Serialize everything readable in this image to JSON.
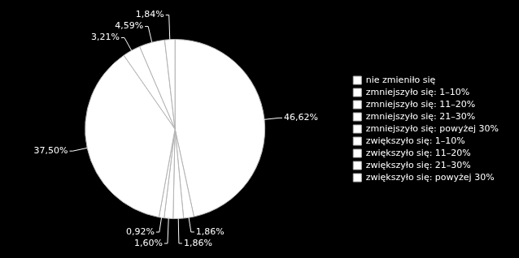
{
  "chart_data": {
    "type": "pie",
    "categories": [
      "nie zmieniło się",
      "zmniejszyło się: 1–10%",
      "zmniejszyło się: 11–20%",
      "zmniejszyło się: 21–30%",
      "zmniejszyło się: powyżej 30%",
      "zwiększyło się: 1–10%",
      "zwiększyło się: 11–20%",
      "zwiększyło się: 21–30%",
      "zwiększyło się: powyżej 30%"
    ],
    "values": [
      46.62,
      1.86,
      1.86,
      1.6,
      0.92,
      37.5,
      3.21,
      4.59,
      1.84
    ],
    "value_labels": [
      "46,62%",
      "1,86%",
      "1,86%",
      "1,60%",
      "0,92%",
      "37,50%",
      "3,21%",
      "4,59%",
      "1,84%"
    ],
    "colors": [
      "#ffffff",
      "#ffffff",
      "#ffffff",
      "#ffffff",
      "#ffffff",
      "#ffffff",
      "#ffffff",
      "#ffffff",
      "#ffffff"
    ],
    "legend": "right",
    "data_labels": true
  }
}
